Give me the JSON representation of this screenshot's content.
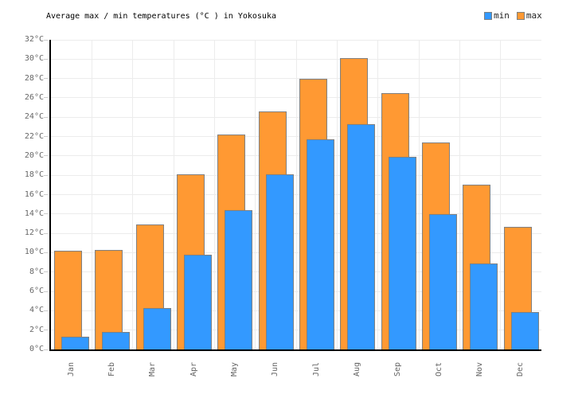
{
  "title": "Average max / min temperatures (°C ) in Yokosuka",
  "legend": {
    "items": [
      {
        "label": "min",
        "color": "#3399FF"
      },
      {
        "label": "max",
        "color": "#FF9933"
      }
    ]
  },
  "colors": {
    "min_bar": "#3399FF",
    "max_bar": "#FF9933",
    "bar_border": "#808080",
    "gridline": "#ececec",
    "axis": "#000000",
    "tick_text": "#666666"
  },
  "y_axis": {
    "tick_labels": [
      "0°C",
      "2°C",
      "4°C",
      "6°C",
      "8°C",
      "10°C",
      "12°C",
      "14°C",
      "16°C",
      "18°C",
      "20°C",
      "22°C",
      "24°C",
      "26°C",
      "28°C",
      "30°C",
      "32°C"
    ],
    "unit": "°C"
  },
  "chart_data": {
    "type": "bar",
    "title": "Average max / min temperatures (°C ) in Yokosuka",
    "categories": [
      "Jan",
      "Feb",
      "Mar",
      "Apr",
      "May",
      "Jun",
      "Jul",
      "Aug",
      "Sep",
      "Oct",
      "Nov",
      "Dec"
    ],
    "series": [
      {
        "name": "min",
        "color": "#3399FF",
        "values": [
          1.3,
          1.8,
          4.3,
          9.8,
          14.4,
          18.1,
          21.7,
          23.3,
          19.9,
          14.0,
          8.9,
          3.9
        ]
      },
      {
        "name": "max",
        "color": "#FF9933",
        "values": [
          10.2,
          10.3,
          12.9,
          18.1,
          22.2,
          24.6,
          28.0,
          30.1,
          26.5,
          21.4,
          17.0,
          12.7
        ]
      }
    ],
    "xlabel": "",
    "ylabel": "",
    "ylim": [
      0,
      32
    ],
    "ytick_step": 2,
    "ytick_suffix": "°C",
    "grid": true,
    "legend_position": "top-right"
  }
}
